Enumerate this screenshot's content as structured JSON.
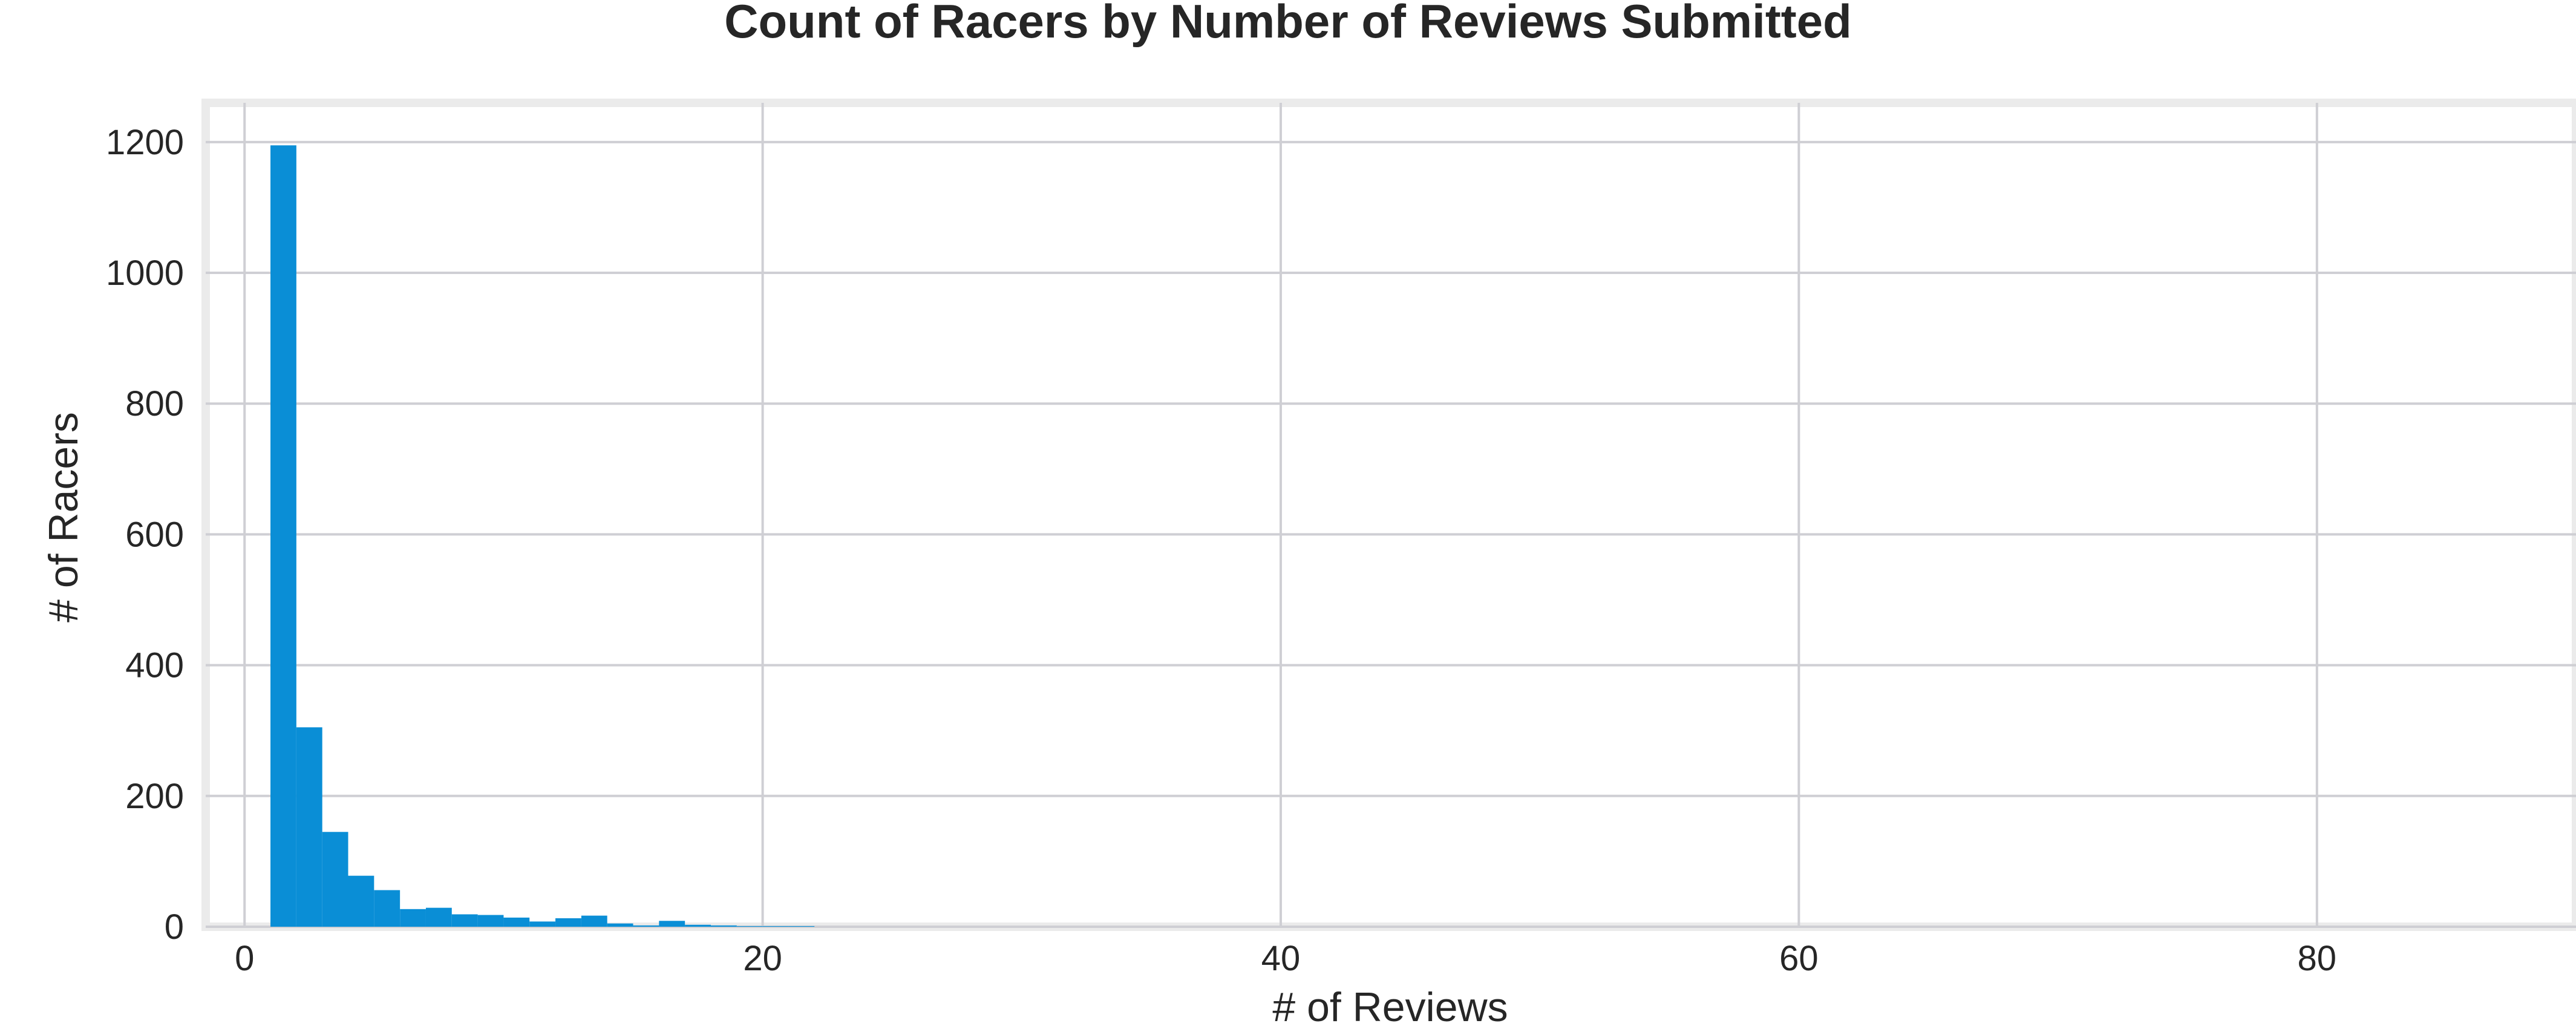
{
  "chart_data": {
    "type": "bar",
    "title": "Count of Racers by Number of Reviews Submitted",
    "xlabel": "# of Reviews",
    "ylabel": "# of Racers",
    "xlim": [
      -1.5,
      90
    ],
    "ylim": [
      0,
      1260
    ],
    "xticks": [
      0,
      20,
      40,
      60,
      80
    ],
    "yticks": [
      0,
      200,
      400,
      600,
      800,
      1000,
      1200
    ],
    "grid": true,
    "bar_color": "#0a8ed6",
    "bins": [
      {
        "x0": 1,
        "x1": 2,
        "value": 1195
      },
      {
        "x0": 2,
        "x1": 3,
        "value": 305
      },
      {
        "x0": 3,
        "x1": 4,
        "value": 145
      },
      {
        "x0": 4,
        "x1": 5,
        "value": 78
      },
      {
        "x0": 5,
        "x1": 6,
        "value": 56
      },
      {
        "x0": 6,
        "x1": 7,
        "value": 27
      },
      {
        "x0": 7,
        "x1": 8,
        "value": 29
      },
      {
        "x0": 8,
        "x1": 9,
        "value": 19
      },
      {
        "x0": 9,
        "x1": 10,
        "value": 18
      },
      {
        "x0": 10,
        "x1": 11,
        "value": 14
      },
      {
        "x0": 11,
        "x1": 12,
        "value": 8
      },
      {
        "x0": 12,
        "x1": 13,
        "value": 13
      },
      {
        "x0": 13,
        "x1": 14,
        "value": 17
      },
      {
        "x0": 14,
        "x1": 15,
        "value": 5
      },
      {
        "x0": 15,
        "x1": 16,
        "value": 2
      },
      {
        "x0": 16,
        "x1": 17,
        "value": 9
      },
      {
        "x0": 17,
        "x1": 18,
        "value": 3
      },
      {
        "x0": 18,
        "x1": 19,
        "value": 2
      },
      {
        "x0": 19,
        "x1": 20,
        "value": 1
      },
      {
        "x0": 20,
        "x1": 21,
        "value": 1
      },
      {
        "x0": 21,
        "x1": 22,
        "value": 1
      }
    ]
  }
}
